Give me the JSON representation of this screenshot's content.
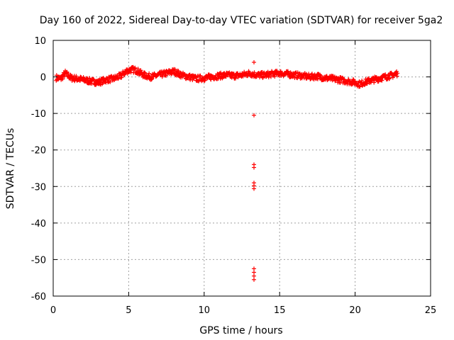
{
  "chart_data": {
    "type": "scatter",
    "title": "Day 160 of 2022, Sidereal Day-to-day VTEC variation (SDTVAR) for receiver 5ga2",
    "xlabel": "GPS time / hours",
    "ylabel": "SDTVAR / TECUs",
    "xlim": [
      0,
      25
    ],
    "ylim": [
      -60,
      10
    ],
    "xticks": [
      0,
      5,
      10,
      15,
      20,
      25
    ],
    "yticks": [
      10,
      0,
      -10,
      -20,
      -30,
      -40,
      -50,
      -60
    ],
    "grid": true,
    "marker": "+",
    "color": "#ff0000",
    "series": [
      {
        "name": "SDTVAR",
        "trend": [
          [
            0.2,
            -0.2
          ],
          [
            0.5,
            -0.5
          ],
          [
            0.8,
            1.0
          ],
          [
            1.2,
            -0.3
          ],
          [
            1.6,
            -0.5
          ],
          [
            2.0,
            -0.8
          ],
          [
            2.5,
            -1.2
          ],
          [
            3.0,
            -1.5
          ],
          [
            3.5,
            -0.8
          ],
          [
            4.0,
            -0.5
          ],
          [
            4.5,
            0.3
          ],
          [
            4.8,
            1.5
          ],
          [
            5.2,
            2.0
          ],
          [
            5.5,
            1.8
          ],
          [
            6.0,
            0.5
          ],
          [
            6.5,
            0.0
          ],
          [
            7.0,
            0.5
          ],
          [
            7.5,
            1.0
          ],
          [
            8.0,
            1.5
          ],
          [
            8.5,
            0.5
          ],
          [
            9.0,
            0.0
          ],
          [
            9.5,
            -0.5
          ],
          [
            10.0,
            -0.3
          ],
          [
            10.5,
            0.0
          ],
          [
            11.0,
            0.3
          ],
          [
            11.5,
            0.5
          ],
          [
            12.0,
            0.3
          ],
          [
            12.5,
            0.5
          ],
          [
            13.0,
            1.0
          ],
          [
            13.5,
            0.5
          ],
          [
            14.0,
            0.5
          ],
          [
            14.5,
            0.8
          ],
          [
            15.0,
            1.0
          ],
          [
            15.5,
            0.8
          ],
          [
            16.0,
            0.5
          ],
          [
            16.5,
            0.3
          ],
          [
            17.0,
            0.0
          ],
          [
            17.5,
            0.2
          ],
          [
            18.0,
            -0.3
          ],
          [
            18.5,
            -0.5
          ],
          [
            19.0,
            -0.8
          ],
          [
            19.5,
            -1.2
          ],
          [
            20.0,
            -1.5
          ],
          [
            20.3,
            -2.0
          ],
          [
            20.6,
            -1.5
          ],
          [
            21.0,
            -1.0
          ],
          [
            21.5,
            -0.5
          ],
          [
            22.0,
            0.0
          ],
          [
            22.5,
            0.5
          ],
          [
            22.8,
            1.0
          ]
        ],
        "outliers": [
          [
            13.3,
            4.0
          ],
          [
            13.3,
            -10.5
          ],
          [
            13.3,
            -24.0
          ],
          [
            13.3,
            -24.8
          ],
          [
            13.3,
            -29.0
          ],
          [
            13.3,
            -29.8
          ],
          [
            13.3,
            -30.6
          ],
          [
            13.3,
            -52.5
          ],
          [
            13.3,
            -53.5
          ],
          [
            13.3,
            -54.5
          ],
          [
            13.3,
            -55.5
          ]
        ]
      }
    ]
  }
}
